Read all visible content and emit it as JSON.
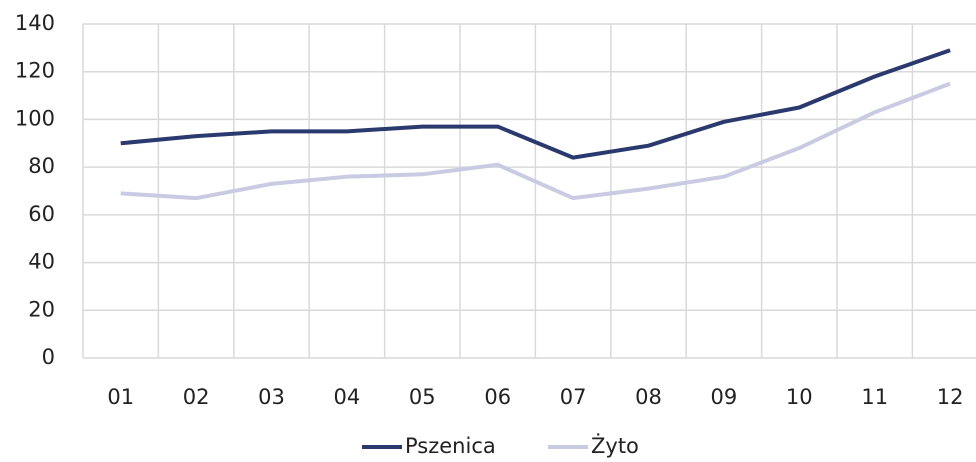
{
  "chart_data": {
    "type": "line",
    "categories": [
      "01",
      "02",
      "03",
      "04",
      "05",
      "06",
      "07",
      "08",
      "09",
      "10",
      "11",
      "12"
    ],
    "series": [
      {
        "name": "Pszenica",
        "color": "#2b3a6e",
        "values": [
          90,
          93,
          95,
          95,
          97,
          97,
          84,
          89,
          99,
          105,
          118,
          129
        ]
      },
      {
        "name": "Żyto",
        "color": "#c9cbe3",
        "values": [
          69,
          67,
          73,
          76,
          77,
          81,
          67,
          71,
          76,
          88,
          103,
          115
        ]
      }
    ],
    "ylim": [
      0,
      140
    ],
    "yticks": [
      0,
      20,
      40,
      60,
      80,
      100,
      120,
      140
    ],
    "grid": true,
    "legend": "bottom"
  }
}
